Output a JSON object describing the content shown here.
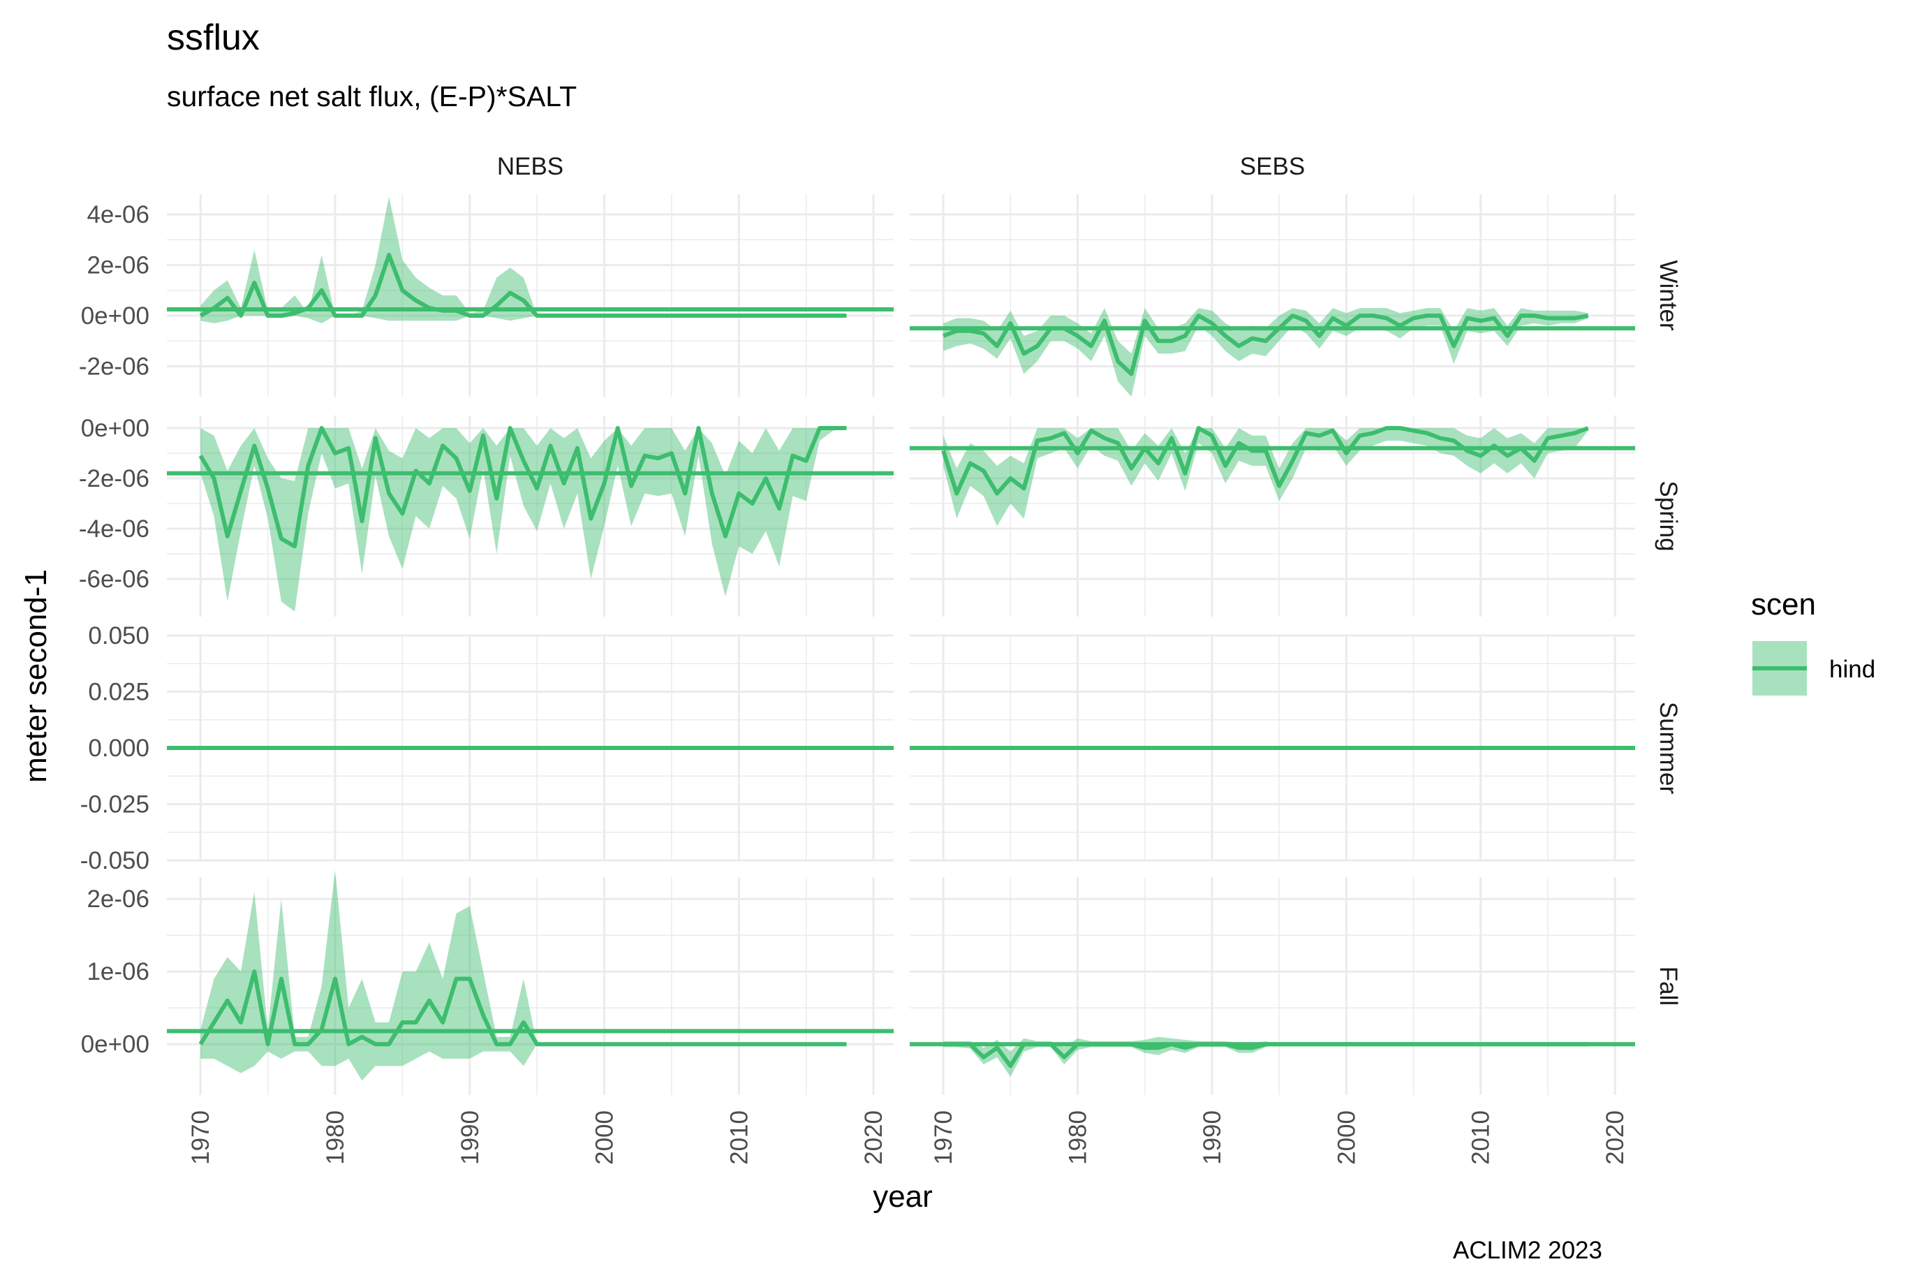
{
  "title": "ssflux",
  "subtitle": "surface net salt flux, (E-P)*SALT",
  "caption": "ACLIM2 2023",
  "colors": {
    "line": "#3dbd6e",
    "ribbon": "#3dbd6e",
    "grid": "#ebebeb"
  },
  "chart_data": {
    "type": "line",
    "facet_columns": [
      "NEBS",
      "SEBS"
    ],
    "facet_rows": [
      "Winter",
      "Spring",
      "Summer",
      "Fall"
    ],
    "xlabel": "year",
    "ylabel": "meter second-1",
    "xlim": [
      1967.5,
      2021.5
    ],
    "xticks": [
      1970,
      1980,
      1990,
      2000,
      2010,
      2020
    ],
    "x_tick_labels": [
      "1970",
      "1980",
      "1990",
      "2000",
      "2010",
      "2020"
    ],
    "legend": {
      "title": "scen",
      "entries": [
        "hind"
      ],
      "position": "right"
    },
    "rows": [
      {
        "season": "Winter",
        "ylim": [
          -3.2e-06,
          4.8e-06
        ],
        "yticks": [
          -2e-06,
          0,
          2e-06,
          4e-06
        ],
        "y_tick_labels": [
          "-2e-06",
          "0e+00",
          "2e-06",
          "4e-06"
        ]
      },
      {
        "season": "Spring",
        "ylim": [
          -7.5e-06,
          5e-07
        ],
        "yticks": [
          -6e-06,
          -4e-06,
          -2e-06,
          0
        ],
        "y_tick_labels": [
          "-6e-06",
          "-4e-06",
          "-2e-06",
          "0e+00"
        ]
      },
      {
        "season": "Summer",
        "ylim": [
          -0.05,
          0.05
        ],
        "yticks": [
          -0.05,
          -0.025,
          0,
          0.025,
          0.05
        ],
        "y_tick_labels": [
          "-0.050",
          "-0.025",
          "0.000",
          "0.025",
          "0.050"
        ]
      },
      {
        "season": "Fall",
        "ylim": [
          -7e-07,
          2.3e-06
        ],
        "yticks": [
          0,
          1e-06,
          2e-06
        ],
        "y_tick_labels": [
          "0e+00",
          "1e-06",
          "2e-06"
        ]
      }
    ],
    "panels": [
      {
        "facet": "NEBS",
        "season": "Winter",
        "mean": 2.5e-07,
        "x": [
          1970,
          1971,
          1972,
          1973,
          1974,
          1975,
          1976,
          1977,
          1978,
          1979,
          1980,
          1981,
          1982,
          1983,
          1984,
          1985,
          1986,
          1987,
          1988,
          1989,
          1990,
          1991,
          1992,
          1993,
          1994,
          1995,
          2018
        ],
        "y": [
          0,
          3e-07,
          7e-07,
          0,
          1.3e-06,
          0,
          0,
          1e-07,
          3e-07,
          1e-06,
          0,
          0,
          0,
          8e-07,
          2.4e-06,
          1e-06,
          6e-07,
          3e-07,
          2e-07,
          2e-07,
          0,
          0,
          4e-07,
          9e-07,
          6e-07,
          0,
          0
        ],
        "ymin": [
          -2e-07,
          -3e-07,
          -2e-07,
          0,
          0,
          0,
          -1e-07,
          0,
          -1e-07,
          -3e-07,
          0,
          0,
          0,
          -1e-07,
          -2e-07,
          -2e-07,
          -2e-07,
          -2e-07,
          -2e-07,
          -2e-07,
          0,
          0,
          -1e-07,
          -2e-07,
          -1e-07,
          0,
          0
        ],
        "ymax": [
          4e-07,
          1e-06,
          1.4e-06,
          3e-07,
          2.6e-06,
          2e-07,
          3e-07,
          8e-07,
          1e-07,
          2.4e-06,
          0,
          0,
          2e-07,
          2e-06,
          4.7e-06,
          2.2e-06,
          1.5e-06,
          1.1e-06,
          8e-07,
          8e-07,
          1e-07,
          2e-07,
          1.5e-06,
          1.9e-06,
          1.5e-06,
          0,
          0
        ]
      },
      {
        "facet": "SEBS",
        "season": "Winter",
        "mean": -5e-07,
        "x": [
          1970,
          1971,
          1972,
          1973,
          1974,
          1975,
          1976,
          1977,
          1978,
          1979,
          1980,
          1981,
          1982,
          1983,
          1984,
          1985,
          1986,
          1987,
          1988,
          1989,
          1990,
          1991,
          1992,
          1993,
          1994,
          1995,
          1996,
          1997,
          1998,
          1999,
          2000,
          2001,
          2002,
          2003,
          2004,
          2005,
          2006,
          2007,
          2008,
          2009,
          2010,
          2011,
          2012,
          2013,
          2014,
          2015,
          2016,
          2017,
          2018
        ],
        "y": [
          -8e-07,
          -6e-07,
          -6e-07,
          -7e-07,
          -1.2e-06,
          -3e-07,
          -1.5e-06,
          -1.2e-06,
          -5e-07,
          -5e-07,
          -8e-07,
          -1.2e-06,
          -2e-07,
          -1.8e-06,
          -2.3e-06,
          -2e-07,
          -1e-06,
          -1e-06,
          -8e-07,
          0,
          -3e-07,
          -8e-07,
          -1.2e-06,
          -9e-07,
          -1e-06,
          -5e-07,
          0,
          -2e-07,
          -8e-07,
          -1e-07,
          -4e-07,
          0,
          0,
          -1e-07,
          -4e-07,
          -1e-07,
          0,
          0,
          -1.2e-06,
          -1e-07,
          -2e-07,
          -1e-07,
          -8e-07,
          0,
          0,
          -1e-07,
          -1e-07,
          -1e-07,
          0
        ],
        "ymin": [
          -1.4e-06,
          -1.2e-06,
          -1.1e-06,
          -1.3e-06,
          -1.7e-06,
          -9e-07,
          -2.3e-06,
          -1.8e-06,
          -1e-06,
          -1e-06,
          -1.3e-06,
          -1.8e-06,
          -8e-07,
          -2.6e-06,
          -3.2e-06,
          -8e-07,
          -1.5e-06,
          -1.5e-06,
          -1.4e-06,
          -4e-07,
          -8e-07,
          -1.4e-06,
          -1.8e-06,
          -1.5e-06,
          -1.6e-06,
          -1e-06,
          -4e-07,
          -7e-07,
          -1.3e-06,
          -6e-07,
          -8e-07,
          -5e-07,
          -5e-07,
          -6e-07,
          -9e-07,
          -5e-07,
          -4e-07,
          -4e-07,
          -1.9e-06,
          -6e-07,
          -7e-07,
          -6e-07,
          -1.2e-06,
          -4e-07,
          -3e-07,
          -4e-07,
          -3e-07,
          -3e-07,
          -1e-07
        ],
        "ymax": [
          -3e-07,
          -1e-07,
          -1e-07,
          -2e-07,
          -6e-07,
          2e-07,
          -8e-07,
          -6e-07,
          0,
          0,
          -3e-07,
          -7e-07,
          3e-07,
          -1e-06,
          -1.5e-06,
          3e-07,
          -5e-07,
          -5e-07,
          -3e-07,
          3e-07,
          2e-07,
          -3e-07,
          -6e-07,
          -4e-07,
          -5e-07,
          0,
          3e-07,
          2e-07,
          -3e-07,
          3e-07,
          1e-07,
          3e-07,
          3e-07,
          3e-07,
          1e-07,
          2e-07,
          3e-07,
          3e-07,
          -6e-07,
          3e-07,
          2e-07,
          3e-07,
          -4e-07,
          3e-07,
          2e-07,
          2e-07,
          2e-07,
          2e-07,
          1e-07
        ]
      },
      {
        "facet": "NEBS",
        "season": "Spring",
        "mean": -1.8e-06,
        "x": [
          1970,
          1971,
          1972,
          1973,
          1974,
          1975,
          1976,
          1977,
          1978,
          1979,
          1980,
          1981,
          1982,
          1983,
          1984,
          1985,
          1986,
          1987,
          1988,
          1989,
          1990,
          1991,
          1992,
          1993,
          1994,
          1995,
          1996,
          1997,
          1998,
          1999,
          2000,
          2001,
          2002,
          2003,
          2004,
          2005,
          2006,
          2007,
          2008,
          2009,
          2010,
          2011,
          2012,
          2013,
          2014,
          2015,
          2016,
          2017,
          2018
        ],
        "y": [
          -1.1e-06,
          -2e-06,
          -4.3e-06,
          -2.5e-06,
          -7e-07,
          -2.4e-06,
          -4.4e-06,
          -4.7e-06,
          -1.5e-06,
          0,
          -1e-06,
          -8e-07,
          -3.7e-06,
          -4e-07,
          -2.6e-06,
          -3.4e-06,
          -1.7e-06,
          -2.2e-06,
          -7e-07,
          -1.2e-06,
          -2.5e-06,
          -3e-07,
          -2.8e-06,
          0,
          -1.3e-06,
          -2.4e-06,
          -7e-07,
          -2.2e-06,
          -8e-07,
          -3.6e-06,
          -2.2e-06,
          0,
          -2.3e-06,
          -1.1e-06,
          -1.2e-06,
          -1e-06,
          -2.6e-06,
          0,
          -2.6e-06,
          -4.3e-06,
          -2.6e-06,
          -3e-06,
          -2e-06,
          -3.2e-06,
          -1.1e-06,
          -1.3e-06,
          0,
          0,
          0
        ],
        "ymin": [
          -1.8e-06,
          -3.5e-06,
          -6.9e-06,
          -4.1e-06,
          -1.5e-06,
          -3.6e-06,
          -6.9e-06,
          -7.3e-06,
          -3.4e-06,
          -1e-06,
          -2.4e-06,
          -2.2e-06,
          -5.8e-06,
          -1.9e-06,
          -4.3e-06,
          -5.6e-06,
          -3.5e-06,
          -4e-06,
          -2.3e-06,
          -2.8e-06,
          -4.4e-06,
          -1.6e-06,
          -5e-06,
          -1.1e-06,
          -3.1e-06,
          -4.1e-06,
          -2.2e-06,
          -4e-06,
          -2.6e-06,
          -6e-06,
          -3.9e-06,
          -1.5e-06,
          -3.9e-06,
          -2.6e-06,
          -2.7e-06,
          -2.6e-06,
          -4.3e-06,
          -1.1e-06,
          -4.6e-06,
          -6.7e-06,
          -4.7e-06,
          -5e-06,
          -4.1e-06,
          -5.5e-06,
          -2.7e-06,
          -2.9e-06,
          -5e-07,
          -1e-07,
          0
        ],
        "ymax": [
          0,
          -3e-07,
          -1.7e-06,
          -7e-07,
          0,
          -1.2e-06,
          -2e-06,
          -2.1e-06,
          0,
          0,
          0,
          0,
          -1.6e-06,
          0,
          -9e-07,
          -1.2e-06,
          0,
          -4e-07,
          0,
          0,
          -6e-07,
          0,
          -7e-07,
          0,
          0,
          -7e-07,
          0,
          -4e-07,
          0,
          -1.2e-06,
          -5e-07,
          0,
          -7e-07,
          0,
          0,
          0,
          -9e-07,
          0,
          -6e-07,
          -1.9e-06,
          -5e-07,
          -1e-06,
          0,
          -9e-07,
          0,
          0,
          0,
          0,
          0
        ]
      },
      {
        "facet": "SEBS",
        "season": "Spring",
        "mean": -8e-07,
        "x": [
          1970,
          1971,
          1972,
          1973,
          1974,
          1975,
          1976,
          1977,
          1978,
          1979,
          1980,
          1981,
          1982,
          1983,
          1984,
          1985,
          1986,
          1987,
          1988,
          1989,
          1990,
          1991,
          1992,
          1993,
          1994,
          1995,
          1996,
          1997,
          1998,
          1999,
          2000,
          2001,
          2002,
          2003,
          2004,
          2005,
          2006,
          2007,
          2008,
          2009,
          2010,
          2011,
          2012,
          2013,
          2014,
          2015,
          2016,
          2017,
          2018
        ],
        "y": [
          -9e-07,
          -2.6e-06,
          -1.4e-06,
          -1.7e-06,
          -2.6e-06,
          -2e-06,
          -2.4e-06,
          -5e-07,
          -4e-07,
          -2e-07,
          -1e-06,
          -1e-07,
          -4e-07,
          -6e-07,
          -1.6e-06,
          -8e-07,
          -1.4e-06,
          -4e-07,
          -1.8e-06,
          0,
          -3e-07,
          -1.5e-06,
          -6e-07,
          -9e-07,
          -9e-07,
          -2.3e-06,
          -1.3e-06,
          -2e-07,
          -3e-07,
          -1e-07,
          -1e-06,
          -3e-07,
          -2e-07,
          0,
          0,
          -1e-07,
          -2e-07,
          -4e-07,
          -5e-07,
          -9e-07,
          -1.1e-06,
          -7e-07,
          -1.1e-06,
          -8e-07,
          -1.3e-06,
          -4e-07,
          -3e-07,
          -2e-07,
          0
        ],
        "ymin": [
          -1.5e-06,
          -3.6e-06,
          -2.3e-06,
          -2.7e-06,
          -3.9e-06,
          -3e-06,
          -3.6e-06,
          -1.2e-06,
          -1e-06,
          -8e-07,
          -1.6e-06,
          -7e-07,
          -1.1e-06,
          -1.3e-06,
          -2.3e-06,
          -1.4e-06,
          -2.1e-06,
          -1e-06,
          -2.5e-06,
          -6e-07,
          -1e-06,
          -2.2e-06,
          -1.3e-06,
          -1.5e-06,
          -1.5e-06,
          -2.9e-06,
          -2e-06,
          -8e-07,
          -9e-07,
          -7e-07,
          -1.5e-06,
          -9e-07,
          -7e-07,
          -5e-07,
          -5e-07,
          -6e-07,
          -7e-07,
          -1e-06,
          -1.1e-06,
          -1.5e-06,
          -1.8e-06,
          -1.4e-06,
          -1.8e-06,
          -1.4e-06,
          -2e-06,
          -1e-06,
          -9e-07,
          -8e-07,
          -1e-07
        ],
        "ymax": [
          -3e-07,
          -1.6e-06,
          -6e-07,
          -9e-07,
          -1.5e-06,
          -1.1e-06,
          -1.4e-06,
          0,
          0,
          0,
          -4e-07,
          0,
          0,
          0,
          -9e-07,
          -2e-07,
          -7e-07,
          0,
          -1e-06,
          0,
          0,
          -8e-07,
          0,
          -3e-07,
          -3e-07,
          -1.6e-06,
          -6e-07,
          0,
          0,
          0,
          -5e-07,
          0,
          0,
          0,
          0,
          0,
          0,
          0,
          0,
          -3e-07,
          -4e-07,
          0,
          -4e-07,
          -2e-07,
          -6e-07,
          0,
          0,
          0,
          0
        ]
      },
      {
        "facet": "NEBS",
        "season": "Summer",
        "mean": 0,
        "x": [
          1970,
          2018
        ],
        "y": [
          0,
          0
        ],
        "ymin": [
          0,
          0
        ],
        "ymax": [
          0,
          0
        ]
      },
      {
        "facet": "SEBS",
        "season": "Summer",
        "mean": 0,
        "x": [
          1970,
          2018
        ],
        "y": [
          0,
          0
        ],
        "ymin": [
          0,
          0
        ],
        "ymax": [
          0,
          0
        ]
      },
      {
        "facet": "NEBS",
        "season": "Fall",
        "mean": 1.8e-07,
        "x": [
          1970,
          1971,
          1972,
          1973,
          1974,
          1975,
          1976,
          1977,
          1978,
          1979,
          1980,
          1981,
          1982,
          1983,
          1984,
          1985,
          1986,
          1987,
          1988,
          1989,
          1990,
          1991,
          1992,
          1993,
          1994,
          1995,
          2018
        ],
        "y": [
          0,
          3e-07,
          6e-07,
          3e-07,
          1e-06,
          0,
          9e-07,
          0,
          0,
          2e-07,
          9e-07,
          0,
          1e-07,
          0,
          0,
          3e-07,
          3e-07,
          6e-07,
          3e-07,
          9e-07,
          9e-07,
          4e-07,
          0,
          0,
          3e-07,
          0,
          0
        ],
        "ymin": [
          -2e-07,
          -2e-07,
          -3e-07,
          -4e-07,
          -3e-07,
          -1e-07,
          -2e-07,
          -1e-07,
          -1e-07,
          -3e-07,
          -3e-07,
          -2e-07,
          -5e-07,
          -3e-07,
          -3e-07,
          -3e-07,
          -2e-07,
          -1e-07,
          -2e-07,
          -2e-07,
          -2e-07,
          -1e-07,
          -1e-07,
          -1e-07,
          -3e-07,
          0,
          0
        ],
        "ymax": [
          2e-07,
          9e-07,
          1.2e-06,
          1e-06,
          2.1e-06,
          2e-07,
          2e-06,
          1e-07,
          1e-07,
          8e-07,
          2.4e-06,
          5e-07,
          9e-07,
          3e-07,
          3e-07,
          1e-06,
          1e-06,
          1.4e-06,
          9e-07,
          1.8e-06,
          1.9e-06,
          1e-06,
          1e-07,
          1e-07,
          9e-07,
          0,
          0
        ]
      },
      {
        "facet": "SEBS",
        "season": "Fall",
        "mean": 0,
        "x": [
          1970,
          1971,
          1972,
          1973,
          1974,
          1975,
          1976,
          1977,
          1978,
          1979,
          1980,
          1981,
          1982,
          1983,
          1984,
          1985,
          1986,
          1987,
          1988,
          1989,
          1990,
          1991,
          1992,
          1993,
          1994,
          1995,
          2018
        ],
        "y": [
          0,
          0,
          0,
          -1.8e-07,
          -5e-08,
          -3e-07,
          0,
          0,
          0,
          -1.8e-07,
          0,
          0,
          0,
          0,
          0,
          -5e-08,
          -5e-08,
          0,
          -5e-08,
          0,
          0,
          0,
          -5e-08,
          -5e-08,
          0,
          0,
          0
        ],
        "ymin": [
          -4e-08,
          -4e-08,
          -6e-08,
          -2.8e-07,
          -1.8e-07,
          -4.5e-07,
          -1e-07,
          -4e-08,
          -4e-08,
          -2.8e-07,
          -8e-08,
          -4e-08,
          -4e-08,
          -4e-08,
          -4e-08,
          -1.2e-07,
          -1.5e-07,
          -8e-08,
          -1.2e-07,
          -4e-08,
          -4e-08,
          -4e-08,
          -1.2e-07,
          -1.2e-07,
          -4e-08,
          0,
          0
        ],
        "ymax": [
          4e-08,
          4e-08,
          4e-08,
          -5e-08,
          6e-08,
          -1e-07,
          8e-08,
          4e-08,
          4e-08,
          -4e-08,
          8e-08,
          4e-08,
          4e-08,
          4e-08,
          4e-08,
          6e-08,
          1e-07,
          8e-08,
          6e-08,
          4e-08,
          4e-08,
          4e-08,
          2e-08,
          2e-08,
          4e-08,
          0,
          0
        ]
      }
    ]
  }
}
